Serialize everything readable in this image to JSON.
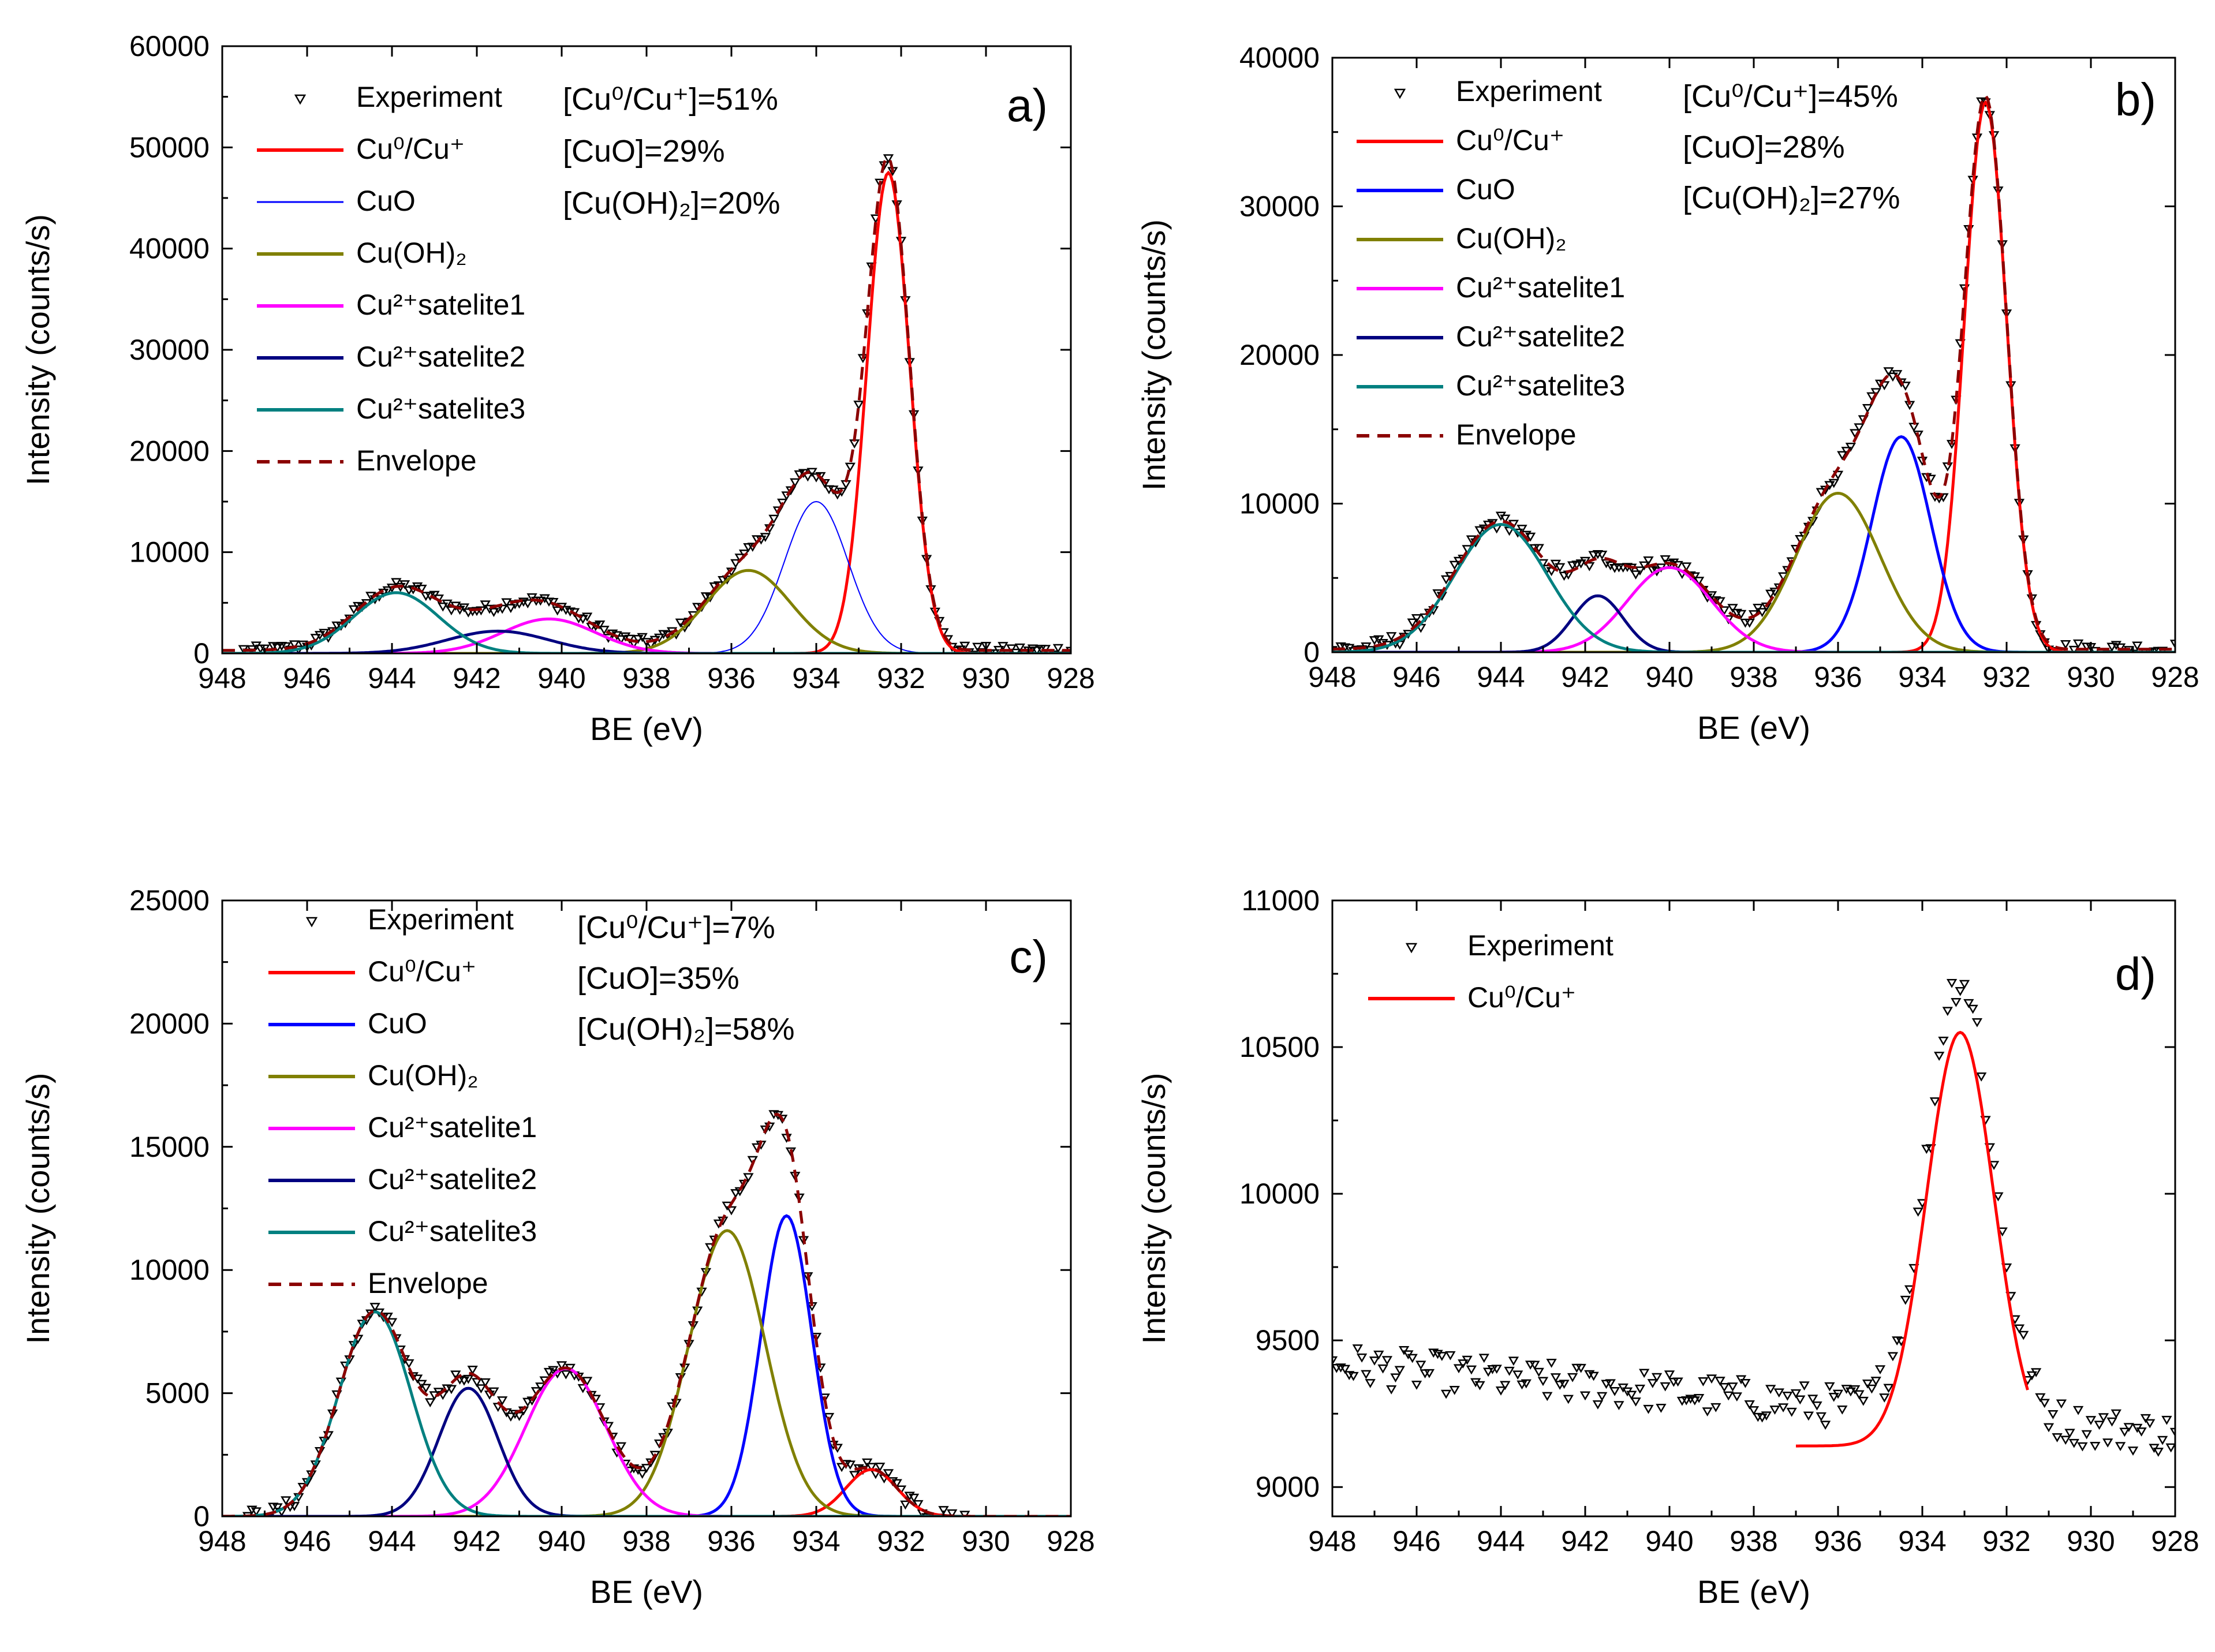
{
  "chart_data": [
    {
      "type": "line",
      "panel_label": "a)",
      "xlabel": "BE (eV)",
      "ylabel": "Intensity (counts/s)",
      "xlim": [
        948,
        928
      ],
      "ylim": [
        0,
        60000
      ],
      "x_ticks": [
        "948",
        "946",
        "944",
        "942",
        "940",
        "938",
        "936",
        "934",
        "932",
        "930",
        "928"
      ],
      "y_ticks": [
        "0",
        "10000",
        "20000",
        "30000",
        "40000",
        "50000",
        "60000"
      ],
      "annotations": [
        "[Cu⁰/Cu⁺]=51%",
        "[CuO]=29%",
        "[Cu(OH)₂]=20%"
      ],
      "legend": [
        {
          "label": "Experiment",
          "style": "marker",
          "color": "#000000"
        },
        {
          "label": "Cu⁰/Cu⁺",
          "style": "solid",
          "color": "#ff0000"
        },
        {
          "label": "CuO",
          "style": "thin",
          "color": "#0000ff"
        },
        {
          "label": "Cu(OH)₂",
          "style": "solid",
          "color": "#808000"
        },
        {
          "label": "Cu²⁺satelite1",
          "style": "solid",
          "color": "#ff00ff"
        },
        {
          "label": "Cu²⁺satelite2",
          "style": "solid",
          "color": "#000080"
        },
        {
          "label": "Cu²⁺satelite3",
          "style": "solid",
          "color": "#008080"
        },
        {
          "label": "Envelope",
          "style": "dash",
          "color": "#8b0000"
        }
      ],
      "components": [
        {
          "center": 932.3,
          "amp": 47500,
          "sigma": 0.5,
          "color": "#ff0000",
          "width": 5
        },
        {
          "center": 934.0,
          "amp": 15000,
          "sigma": 0.75,
          "color": "#0000ff",
          "width": 2
        },
        {
          "center": 935.6,
          "amp": 8200,
          "sigma": 1.0,
          "color": "#808000",
          "width": 5
        },
        {
          "center": 940.3,
          "amp": 3400,
          "sigma": 1.1,
          "color": "#ff00ff",
          "width": 5
        },
        {
          "center": 941.5,
          "amp": 2200,
          "sigma": 1.2,
          "color": "#000080",
          "width": 5
        },
        {
          "center": 943.9,
          "amp": 6000,
          "sigma": 1.0,
          "color": "#008080",
          "width": 5
        }
      ],
      "baseline": 300,
      "experiment_range": [
        947.5,
        928.0
      ],
      "noise": 500
    },
    {
      "type": "line",
      "panel_label": "b)",
      "xlabel": "BE (eV)",
      "ylabel": "Intensity (counts/s)",
      "xlim": [
        948,
        928
      ],
      "ylim": [
        0,
        40000
      ],
      "x_ticks": [
        "948",
        "946",
        "944",
        "942",
        "940",
        "938",
        "936",
        "934",
        "932",
        "930",
        "928"
      ],
      "y_ticks": [
        "0",
        "10000",
        "20000",
        "30000",
        "40000"
      ],
      "annotations": [
        "[Cu⁰/Cu⁺]=45%",
        "[CuO]=28%",
        "[Cu(OH)₂]=27%"
      ],
      "legend": [
        {
          "label": "Experiment",
          "style": "marker",
          "color": "#000000"
        },
        {
          "label": "Cu⁰/Cu⁺",
          "style": "solid",
          "color": "#ff0000"
        },
        {
          "label": "CuO",
          "style": "solid",
          "color": "#0000ff"
        },
        {
          "label": "Cu(OH)₂",
          "style": "solid",
          "color": "#808000"
        },
        {
          "label": "Cu²⁺satelite1",
          "style": "solid",
          "color": "#ff00ff"
        },
        {
          "label": "Cu²⁺satelite2",
          "style": "solid",
          "color": "#000080"
        },
        {
          "label": "Cu²⁺satelite3",
          "style": "solid",
          "color": "#008080"
        },
        {
          "label": "Envelope",
          "style": "dash",
          "color": "#8b0000"
        }
      ],
      "components": [
        {
          "center": 932.5,
          "amp": 37000,
          "sigma": 0.5,
          "color": "#ff0000",
          "width": 5
        },
        {
          "center": 934.5,
          "amp": 14500,
          "sigma": 0.7,
          "color": "#0000ff",
          "width": 5
        },
        {
          "center": 936.0,
          "amp": 10700,
          "sigma": 1.0,
          "color": "#808000",
          "width": 5
        },
        {
          "center": 940.0,
          "amp": 5700,
          "sigma": 1.0,
          "color": "#ff00ff",
          "width": 5
        },
        {
          "center": 941.7,
          "amp": 3800,
          "sigma": 0.6,
          "color": "#000080",
          "width": 5
        },
        {
          "center": 944.0,
          "amp": 8600,
          "sigma": 1.1,
          "color": "#008080",
          "width": 5
        }
      ],
      "baseline": 200,
      "experiment_range": [
        948.0,
        928.0
      ],
      "noise": 500
    },
    {
      "type": "line",
      "panel_label": "c)",
      "xlabel": "BE (eV)",
      "ylabel": "Intensity (counts/s)",
      "xlim": [
        948,
        928
      ],
      "ylim": [
        0,
        25000
      ],
      "x_ticks": [
        "948",
        "946",
        "944",
        "942",
        "940",
        "938",
        "936",
        "934",
        "932",
        "930",
        "928"
      ],
      "y_ticks": [
        "0",
        "5000",
        "10000",
        "15000",
        "20000",
        "25000"
      ],
      "annotations": [
        "[Cu⁰/Cu⁺]=7%",
        "[CuO]=35%",
        "[Cu(OH)₂]=58%"
      ],
      "legend": [
        {
          "label": "Experiment",
          "style": "marker",
          "color": "#000000"
        },
        {
          "label": "Cu⁰/Cu⁺",
          "style": "solid",
          "color": "#ff0000"
        },
        {
          "label": "CuO",
          "style": "solid",
          "color": "#0000ff"
        },
        {
          "label": "Cu(OH)₂",
          "style": "solid",
          "color": "#808000"
        },
        {
          "label": "Cu²⁺satelite1",
          "style": "solid",
          "color": "#ff00ff"
        },
        {
          "label": "Cu²⁺satelite2",
          "style": "solid",
          "color": "#000080"
        },
        {
          "label": "Cu²⁺satelite3",
          "style": "solid",
          "color": "#008080"
        },
        {
          "label": "Envelope",
          "style": "dash",
          "color": "#8b0000"
        }
      ],
      "components": [
        {
          "center": 932.7,
          "amp": 1900,
          "sigma": 0.6,
          "color": "#ff0000",
          "width": 5
        },
        {
          "center": 934.7,
          "amp": 12200,
          "sigma": 0.6,
          "color": "#0000ff",
          "width": 5
        },
        {
          "center": 936.1,
          "amp": 11600,
          "sigma": 0.9,
          "color": "#808000",
          "width": 5
        },
        {
          "center": 939.9,
          "amp": 6000,
          "sigma": 0.95,
          "color": "#ff00ff",
          "width": 5
        },
        {
          "center": 942.2,
          "amp": 5200,
          "sigma": 0.7,
          "color": "#000080",
          "width": 5
        },
        {
          "center": 944.4,
          "amp": 8300,
          "sigma": 0.85,
          "color": "#008080",
          "width": 5
        }
      ],
      "baseline": 0,
      "experiment_range": [
        947.5,
        930.5
      ],
      "noise": 300
    },
    {
      "type": "line",
      "panel_label": "d)",
      "xlabel": "BE (eV)",
      "ylabel": "Intensity (counts/s)",
      "xlim": [
        948,
        928
      ],
      "ylim": [
        8900,
        11000
      ],
      "x_ticks": [
        "948",
        "946",
        "944",
        "942",
        "940",
        "938",
        "936",
        "934",
        "932",
        "930",
        "928"
      ],
      "y_ticks": [
        "9000",
        "9500",
        "10000",
        "10500",
        "11000"
      ],
      "annotations": [],
      "legend": [
        {
          "label": "Experiment",
          "style": "marker",
          "color": "#000000"
        },
        {
          "label": "Cu⁰/Cu⁺",
          "style": "solid",
          "color": "#ff0000"
        }
      ],
      "components": [
        {
          "center": 933.1,
          "amp": 1410,
          "sigma": 0.8,
          "color": "#ff0000",
          "width": 5
        }
      ],
      "fit_range": [
        937.0,
        931.5
      ],
      "baseline": 9140,
      "experiment_range": [
        948.0,
        928.0
      ],
      "noise": 70,
      "background_slope": [
        9420,
        9180
      ]
    }
  ]
}
